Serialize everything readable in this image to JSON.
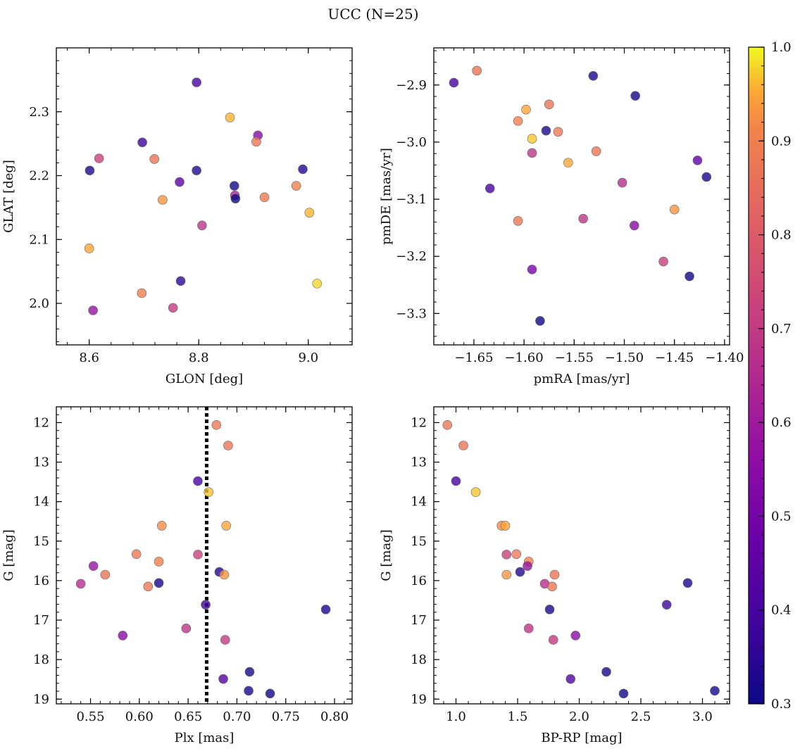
{
  "title": "UCC (N=25)",
  "colorbar": {
    "min": 0.3,
    "max": 1.0,
    "ticks": [
      "0.3",
      "0.4",
      "0.5",
      "0.6",
      "0.7",
      "0.8",
      "0.9",
      "1.0"
    ],
    "colormap": "plasma"
  },
  "chart_data": [
    {
      "type": "scatter",
      "xlabel": "GLON [deg]",
      "ylabel": "GLAT [deg]",
      "xlim": [
        8.54,
        9.08
      ],
      "ylim": [
        1.935,
        2.4
      ],
      "xticks": [
        "8.6",
        "8.8",
        "9.0"
      ],
      "yticks": [
        "2.0",
        "2.1",
        "2.2",
        "2.3"
      ],
      "grid": false,
      "points": [
        {
          "x": 8.601,
          "y": 2.208,
          "c": 0.32
        },
        {
          "x": 8.618,
          "y": 2.227,
          "c": 0.72
        },
        {
          "x": 8.6,
          "y": 2.086,
          "c": 0.95
        },
        {
          "x": 8.607,
          "y": 1.989,
          "c": 0.58
        },
        {
          "x": 8.697,
          "y": 2.252,
          "c": 0.38
        },
        {
          "x": 8.719,
          "y": 2.226,
          "c": 0.87
        },
        {
          "x": 8.734,
          "y": 2.162,
          "c": 0.93
        },
        {
          "x": 8.696,
          "y": 2.016,
          "c": 0.9
        },
        {
          "x": 8.753,
          "y": 1.993,
          "c": 0.7
        },
        {
          "x": 8.765,
          "y": 2.19,
          "c": 0.45
        },
        {
          "x": 8.767,
          "y": 2.035,
          "c": 0.35
        },
        {
          "x": 8.796,
          "y": 2.346,
          "c": 0.4
        },
        {
          "x": 8.796,
          "y": 2.208,
          "c": 0.33
        },
        {
          "x": 8.806,
          "y": 2.122,
          "c": 0.68
        },
        {
          "x": 8.857,
          "y": 2.291,
          "c": 0.96
        },
        {
          "x": 8.865,
          "y": 2.184,
          "c": 0.31
        },
        {
          "x": 8.866,
          "y": 2.169,
          "c": 0.62
        },
        {
          "x": 8.867,
          "y": 2.164,
          "c": 0.3
        },
        {
          "x": 8.908,
          "y": 2.263,
          "c": 0.55
        },
        {
          "x": 8.905,
          "y": 2.253,
          "c": 0.88
        },
        {
          "x": 8.92,
          "y": 2.166,
          "c": 0.89
        },
        {
          "x": 8.99,
          "y": 2.21,
          "c": 0.34
        },
        {
          "x": 8.978,
          "y": 2.184,
          "c": 0.9
        },
        {
          "x": 9.002,
          "y": 2.142,
          "c": 0.96
        },
        {
          "x": 9.016,
          "y": 2.031,
          "c": 0.98
        }
      ]
    },
    {
      "type": "scatter",
      "xlabel": "pmRA [mas/yr]",
      "ylabel": "pmDE [mas/yr]",
      "xlim": [
        -1.69,
        -1.395
      ],
      "ylim": [
        -3.355,
        -2.835
      ],
      "xticks": [
        "−1.65",
        "−1.60",
        "−1.55",
        "−1.50",
        "−1.45",
        "−1.40"
      ],
      "yticks": [
        "−2.9",
        "−3.0",
        "−3.1",
        "−3.2",
        "−3.3"
      ],
      "grid": false,
      "points": [
        {
          "x": -1.67,
          "y": -2.896,
          "c": 0.4
        },
        {
          "x": -1.647,
          "y": -2.875,
          "c": 0.87
        },
        {
          "x": -1.634,
          "y": -3.081,
          "c": 0.4
        },
        {
          "x": -1.606,
          "y": -2.963,
          "c": 0.9
        },
        {
          "x": -1.598,
          "y": -2.943,
          "c": 0.95
        },
        {
          "x": -1.606,
          "y": -3.138,
          "c": 0.88
        },
        {
          "x": -1.592,
          "y": -2.994,
          "c": 0.97
        },
        {
          "x": -1.592,
          "y": -3.019,
          "c": 0.68
        },
        {
          "x": -1.592,
          "y": -3.223,
          "c": 0.5
        },
        {
          "x": -1.578,
          "y": -2.98,
          "c": 0.32
        },
        {
          "x": -1.575,
          "y": -2.934,
          "c": 0.87
        },
        {
          "x": -1.566,
          "y": -2.982,
          "c": 0.88
        },
        {
          "x": -1.584,
          "y": -3.313,
          "c": 0.3
        },
        {
          "x": -1.556,
          "y": -3.036,
          "c": 0.95
        },
        {
          "x": -1.531,
          "y": -2.884,
          "c": 0.32
        },
        {
          "x": -1.528,
          "y": -3.016,
          "c": 0.87
        },
        {
          "x": -1.541,
          "y": -3.134,
          "c": 0.68
        },
        {
          "x": -1.502,
          "y": -3.071,
          "c": 0.66
        },
        {
          "x": -1.489,
          "y": -2.919,
          "c": 0.31
        },
        {
          "x": -1.49,
          "y": -3.146,
          "c": 0.55
        },
        {
          "x": -1.461,
          "y": -3.209,
          "c": 0.72
        },
        {
          "x": -1.45,
          "y": -3.118,
          "c": 0.93
        },
        {
          "x": -1.435,
          "y": -3.235,
          "c": 0.3
        },
        {
          "x": -1.427,
          "y": -3.032,
          "c": 0.45
        },
        {
          "x": -1.418,
          "y": -3.061,
          "c": 0.32
        }
      ]
    },
    {
      "type": "scatter",
      "xlabel": "Plx [mas]",
      "ylabel": "G [mag]",
      "xlim": [
        0.515,
        0.818
      ],
      "ylim": [
        19.12,
        11.6
      ],
      "xticks": [
        "0.55",
        "0.60",
        "0.65",
        "0.70",
        "0.75",
        "0.80"
      ],
      "yticks": [
        "12",
        "13",
        "14",
        "15",
        "16",
        "17",
        "18",
        "19"
      ],
      "grid": false,
      "vline": {
        "x": 0.669,
        "style": "dotted"
      },
      "points": [
        {
          "x": 0.679,
          "y": 12.06,
          "c": 0.88
        },
        {
          "x": 0.691,
          "y": 12.58,
          "c": 0.87
        },
        {
          "x": 0.66,
          "y": 13.48,
          "c": 0.4
        },
        {
          "x": 0.671,
          "y": 13.76,
          "c": 0.97
        },
        {
          "x": 0.623,
          "y": 14.61,
          "c": 0.92
        },
        {
          "x": 0.689,
          "y": 14.61,
          "c": 0.95
        },
        {
          "x": 0.597,
          "y": 15.33,
          "c": 0.88
        },
        {
          "x": 0.66,
          "y": 15.34,
          "c": 0.72
        },
        {
          "x": 0.62,
          "y": 15.52,
          "c": 0.9
        },
        {
          "x": 0.553,
          "y": 15.63,
          "c": 0.58
        },
        {
          "x": 0.682,
          "y": 15.78,
          "c": 0.33
        },
        {
          "x": 0.687,
          "y": 15.85,
          "c": 0.93
        },
        {
          "x": 0.565,
          "y": 15.85,
          "c": 0.87
        },
        {
          "x": 0.54,
          "y": 16.08,
          "c": 0.66
        },
        {
          "x": 0.62,
          "y": 16.06,
          "c": 0.32
        },
        {
          "x": 0.609,
          "y": 16.15,
          "c": 0.88
        },
        {
          "x": 0.668,
          "y": 16.61,
          "c": 0.38
        },
        {
          "x": 0.791,
          "y": 16.73,
          "c": 0.32
        },
        {
          "x": 0.648,
          "y": 17.21,
          "c": 0.68
        },
        {
          "x": 0.583,
          "y": 17.39,
          "c": 0.55
        },
        {
          "x": 0.688,
          "y": 17.5,
          "c": 0.7
        },
        {
          "x": 0.713,
          "y": 18.31,
          "c": 0.31
        },
        {
          "x": 0.686,
          "y": 18.49,
          "c": 0.42
        },
        {
          "x": 0.712,
          "y": 18.79,
          "c": 0.31
        },
        {
          "x": 0.734,
          "y": 18.86,
          "c": 0.3
        }
      ]
    },
    {
      "type": "scatter",
      "xlabel": "BP-RP [mag]",
      "ylabel": "G [mag]",
      "xlim": [
        0.82,
        3.22
      ],
      "ylim": [
        19.12,
        11.6
      ],
      "xticks": [
        "1.0",
        "1.5",
        "2.0",
        "2.5",
        "3.0"
      ],
      "yticks": [
        "12",
        "13",
        "14",
        "15",
        "16",
        "17",
        "18",
        "19"
      ],
      "grid": false,
      "points": [
        {
          "x": 0.93,
          "y": 12.06,
          "c": 0.88
        },
        {
          "x": 1.06,
          "y": 12.58,
          "c": 0.87
        },
        {
          "x": 1.0,
          "y": 13.48,
          "c": 0.4
        },
        {
          "x": 1.16,
          "y": 13.76,
          "c": 0.97
        },
        {
          "x": 1.37,
          "y": 14.61,
          "c": 0.92
        },
        {
          "x": 1.4,
          "y": 14.61,
          "c": 0.95
        },
        {
          "x": 1.41,
          "y": 15.34,
          "c": 0.72
        },
        {
          "x": 1.49,
          "y": 15.33,
          "c": 0.88
        },
        {
          "x": 1.59,
          "y": 15.52,
          "c": 0.9
        },
        {
          "x": 1.58,
          "y": 15.63,
          "c": 0.58
        },
        {
          "x": 1.52,
          "y": 15.78,
          "c": 0.33
        },
        {
          "x": 1.41,
          "y": 15.85,
          "c": 0.93
        },
        {
          "x": 1.8,
          "y": 15.85,
          "c": 0.87
        },
        {
          "x": 1.72,
          "y": 16.08,
          "c": 0.66
        },
        {
          "x": 1.78,
          "y": 16.15,
          "c": 0.88
        },
        {
          "x": 2.88,
          "y": 16.06,
          "c": 0.32
        },
        {
          "x": 2.71,
          "y": 16.61,
          "c": 0.38
        },
        {
          "x": 1.76,
          "y": 16.73,
          "c": 0.32
        },
        {
          "x": 1.59,
          "y": 17.21,
          "c": 0.68
        },
        {
          "x": 1.97,
          "y": 17.39,
          "c": 0.55
        },
        {
          "x": 1.79,
          "y": 17.5,
          "c": 0.7
        },
        {
          "x": 2.22,
          "y": 18.31,
          "c": 0.31
        },
        {
          "x": 1.93,
          "y": 18.49,
          "c": 0.42
        },
        {
          "x": 3.1,
          "y": 18.79,
          "c": 0.31
        },
        {
          "x": 2.36,
          "y": 18.86,
          "c": 0.3
        }
      ]
    }
  ]
}
